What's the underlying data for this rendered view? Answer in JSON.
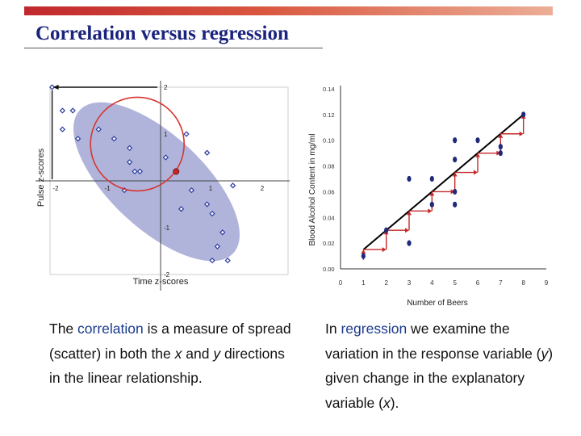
{
  "title": "Correlation versus regression",
  "left_text": {
    "part1": "The ",
    "keyword": "correlation",
    "part2": " is a measure of spread (scatter) in both the ",
    "x": "x",
    "part3": " and ",
    "y": "y",
    "part4": " directions in the linear relationship."
  },
  "right_text": {
    "part1": "In ",
    "keyword": "regression",
    "part2": " we examine the variation in the response variable (",
    "y": "y",
    "part3": ") given change in the explanatory variable (",
    "x": "x",
    "part4": ")."
  },
  "chart_data": [
    {
      "type": "scatter",
      "xlabel": "Time z-scores",
      "ylabel": "Pulse z-scores",
      "xlim": [
        -2.5,
        2.5
      ],
      "ylim": [
        -2.5,
        2.5
      ],
      "x_ticks": [
        "-2",
        "-1",
        "1",
        "2"
      ],
      "y_ticks": [
        "2",
        "1",
        "-1",
        "-2"
      ],
      "highlight_point": {
        "x": 0.3,
        "y": 0.2
      },
      "points": [
        {
          "x": -2.1,
          "y": 2.0
        },
        {
          "x": -1.9,
          "y": 1.5
        },
        {
          "x": -1.7,
          "y": 1.5
        },
        {
          "x": -1.9,
          "y": 1.1
        },
        {
          "x": -1.6,
          "y": 0.9
        },
        {
          "x": -1.2,
          "y": 1.1
        },
        {
          "x": -0.9,
          "y": 0.9
        },
        {
          "x": -0.6,
          "y": 0.7
        },
        {
          "x": -0.6,
          "y": 0.4
        },
        {
          "x": -0.5,
          "y": 0.2
        },
        {
          "x": -0.4,
          "y": 0.2
        },
        {
          "x": -0.7,
          "y": -0.2
        },
        {
          "x": 0.5,
          "y": 1.0
        },
        {
          "x": 0.9,
          "y": 0.6
        },
        {
          "x": 1.4,
          "y": -0.1
        },
        {
          "x": 0.6,
          "y": -0.2
        },
        {
          "x": 0.9,
          "y": -0.5
        },
        {
          "x": 0.4,
          "y": -0.6
        },
        {
          "x": 1.0,
          "y": -0.7
        },
        {
          "x": 1.2,
          "y": -1.1
        },
        {
          "x": 1.1,
          "y": -1.4
        },
        {
          "x": 1.0,
          "y": -1.7
        },
        {
          "x": 1.3,
          "y": -1.7
        },
        {
          "x": 0.1,
          "y": 0.5
        }
      ]
    },
    {
      "type": "scatter",
      "xlabel": "Number of Beers",
      "ylabel": "Blood Alcohol Content in mg/ml",
      "xlim": [
        0,
        9
      ],
      "ylim": [
        0,
        0.14
      ],
      "x_ticks": [
        "0",
        "1",
        "2",
        "3",
        "4",
        "5",
        "6",
        "7",
        "8",
        "9"
      ],
      "y_ticks": [
        "0.00",
        "0.02",
        "0.04",
        "0.06",
        "0.08",
        "0.10",
        "0.12",
        "0.14"
      ],
      "points": [
        {
          "x": 1,
          "y": 0.01
        },
        {
          "x": 2,
          "y": 0.03
        },
        {
          "x": 3,
          "y": 0.02
        },
        {
          "x": 3,
          "y": 0.07
        },
        {
          "x": 4,
          "y": 0.05
        },
        {
          "x": 4,
          "y": 0.07
        },
        {
          "x": 5,
          "y": 0.05
        },
        {
          "x": 5,
          "y": 0.06
        },
        {
          "x": 5,
          "y": 0.085
        },
        {
          "x": 5,
          "y": 0.1
        },
        {
          "x": 6,
          "y": 0.1
        },
        {
          "x": 7,
          "y": 0.09
        },
        {
          "x": 7,
          "y": 0.095
        },
        {
          "x": 8,
          "y": 0.12
        }
      ],
      "regression_line": {
        "x": [
          1,
          8
        ],
        "y": [
          0.015,
          0.12
        ]
      },
      "arrow_x": [
        1,
        2,
        3,
        4,
        5,
        6,
        7,
        8
      ]
    }
  ]
}
